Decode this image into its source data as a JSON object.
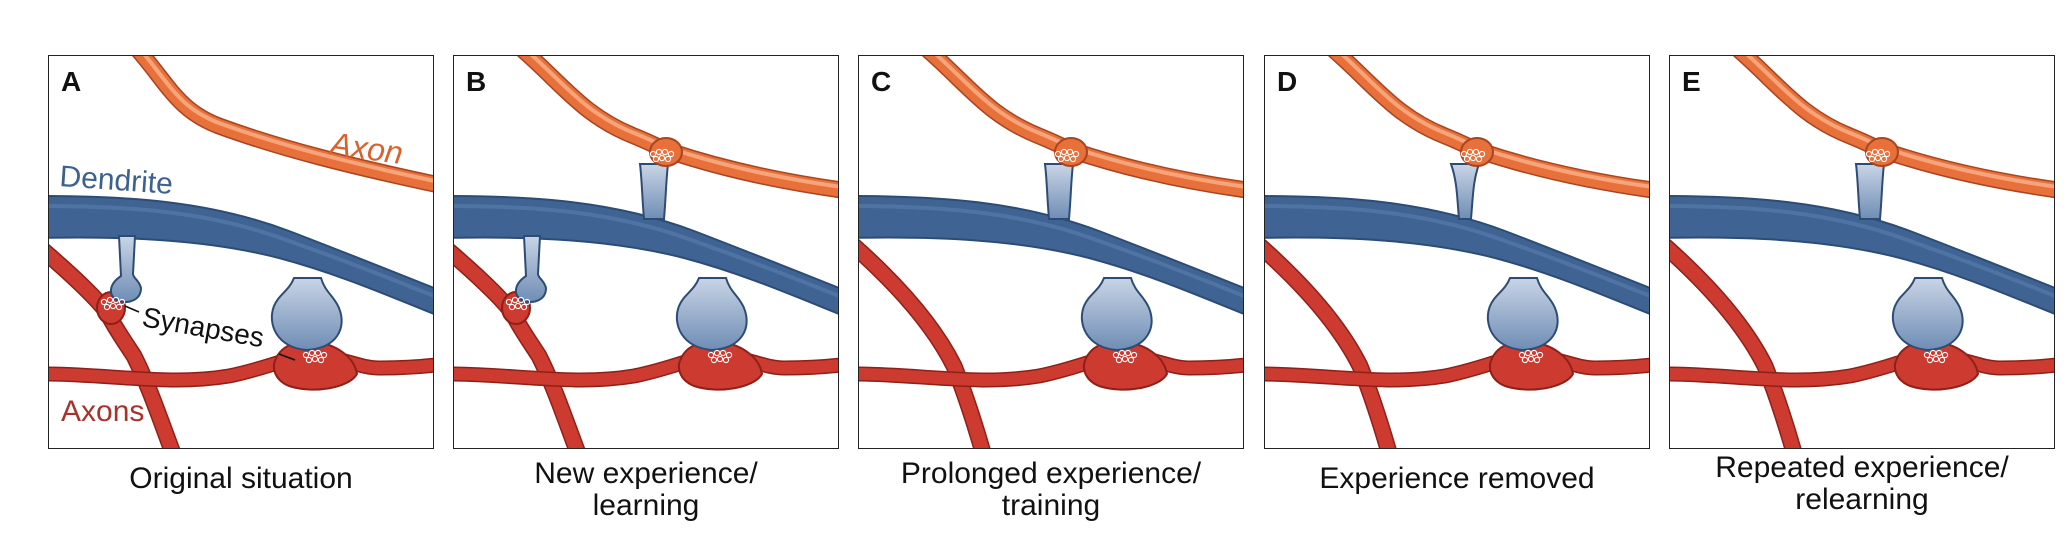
{
  "panels": [
    {
      "letter": "A",
      "caption": [
        "Original situation"
      ],
      "spine_b": false,
      "left_axon": true,
      "red_spine": true
    },
    {
      "letter": "B",
      "caption": [
        "New experience/",
        "learning"
      ],
      "spine_b": true,
      "left_axon": true,
      "red_spine": true
    },
    {
      "letter": "C",
      "caption": [
        "Prolonged experience/",
        "training"
      ],
      "spine_b": true,
      "left_axon": false,
      "red_spine": false
    },
    {
      "letter": "D",
      "caption": [
        "Experience removed"
      ],
      "spine_b": true,
      "spine_thin": true,
      "left_axon": false,
      "red_spine": false
    },
    {
      "letter": "E",
      "caption": [
        "Repeated experience/",
        "relearning"
      ],
      "spine_b": true,
      "left_axon": false,
      "red_spine": false
    }
  ],
  "labels": {
    "axon": "Axon",
    "dendrite": "Dendrite",
    "synapses": "Synapses",
    "axons": "Axons"
  },
  "colors": {
    "axon_orange": "#e8703a",
    "dendrite_blue": "#3f6494",
    "spine_blue": "#8fa6c6",
    "axon_red": "#cc3a30",
    "label_axon": "#d9622c",
    "label_dendrite": "#3c6190",
    "label_axons": "#a8322c"
  }
}
